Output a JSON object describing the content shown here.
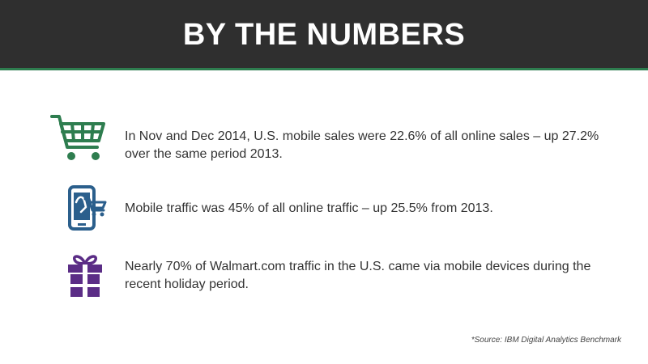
{
  "header": {
    "title": "BY THE NUMBERS",
    "background_color": "#2f2f2f",
    "accent_color": "#2e7d4f"
  },
  "stats": [
    {
      "icon": "shopping-cart-icon",
      "icon_color": "#2e7d4f",
      "text": "In Nov and Dec 2014, U.S. mobile sales were 22.6% of all online sales – up 27.2% over the same period 2013."
    },
    {
      "icon": "mobile-shopping-icon",
      "icon_color": "#2b5f8c",
      "text": "Mobile traffic was 45% of all online traffic – up 25.5% from 2013."
    },
    {
      "icon": "gift-icon",
      "icon_color": "#5b2d86",
      "text": "Nearly 70% of Walmart.com traffic in the U.S. came via mobile devices during the recent holiday period."
    }
  ],
  "footer": {
    "source": "*Source: IBM Digital Analytics Benchmark"
  }
}
